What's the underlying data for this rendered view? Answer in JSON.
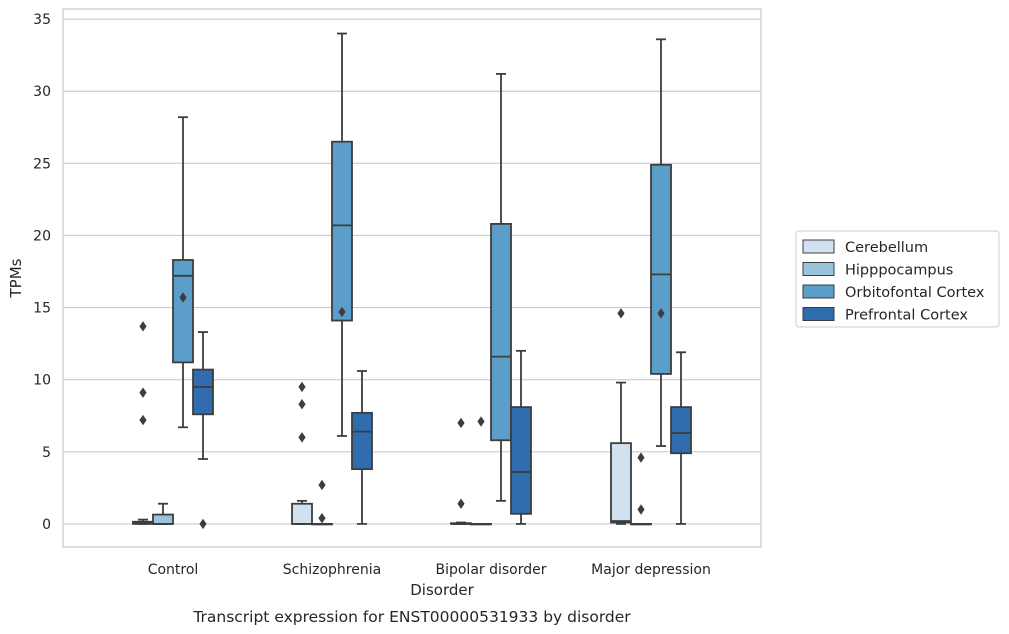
{
  "chart_data": {
    "type": "box",
    "xlabel": "Disorder",
    "ylabel": "TPMs",
    "caption": "Transcript expression for ENST00000531933 by disorder",
    "ylim": [
      -1.6,
      35.7
    ],
    "yticks": [
      0,
      5,
      10,
      15,
      20,
      25,
      30,
      35
    ],
    "grid": "horizontal",
    "legend_position": "right",
    "categories": [
      "Control",
      "Schizophrenia",
      "Bipolar disorder",
      "Major depression"
    ],
    "series": [
      {
        "name": "Cerebellum",
        "color": "#d1e1f0",
        "boxes": [
          {
            "whislo": 0,
            "q1": 0.0,
            "med": 0.1,
            "q3": 0.15,
            "whishi": 0.3,
            "fliers": [
              7.2,
              9.1,
              13.7
            ]
          },
          {
            "whislo": 0,
            "q1": 0.0,
            "med": 0.0,
            "q3": 1.4,
            "whishi": 1.6,
            "fliers": [
              6.0,
              8.3,
              9.5
            ]
          },
          {
            "whislo": 0,
            "q1": 0.0,
            "med": 0.0,
            "q3": 0.05,
            "whishi": 0.1,
            "fliers": [
              1.4,
              7.0
            ]
          },
          {
            "whislo": 0,
            "q1": 0.1,
            "med": 0.2,
            "q3": 5.6,
            "whishi": 9.8,
            "fliers": [
              14.6
            ]
          }
        ]
      },
      {
        "name": "Hipppocampus",
        "color": "#9ac3de",
        "boxes": [
          {
            "whislo": 0,
            "q1": 0.0,
            "med": 0.0,
            "q3": 0.65,
            "whishi": 1.4,
            "fliers": []
          },
          {
            "whislo": 0,
            "q1": 0.0,
            "med": 0.0,
            "q3": 0.0,
            "whishi": 0.0,
            "fliers": [
              0.4,
              2.7
            ]
          },
          {
            "whislo": 0,
            "q1": 0.0,
            "med": 0.0,
            "q3": 0.0,
            "whishi": 0.0,
            "fliers": [
              7.1
            ]
          },
          {
            "whislo": 0,
            "q1": 0.0,
            "med": 0.0,
            "q3": 0.0,
            "whishi": 0.0,
            "fliers": [
              1.0,
              4.6
            ]
          }
        ]
      },
      {
        "name": "Orbitofontal Cortex",
        "color": "#5b9ec9",
        "boxes": [
          {
            "whislo": 6.7,
            "q1": 11.2,
            "med": 17.2,
            "q3": 18.3,
            "whishi": 28.2,
            "fliers": [
              15.7
            ]
          },
          {
            "whislo": 6.1,
            "q1": 14.1,
            "med": 20.7,
            "q3": 26.5,
            "whishi": 34.0,
            "fliers": [
              14.7
            ]
          },
          {
            "whislo": 1.6,
            "q1": 5.8,
            "med": 11.6,
            "q3": 20.8,
            "whishi": 31.2,
            "fliers": []
          },
          {
            "whislo": 5.4,
            "q1": 10.4,
            "med": 17.3,
            "q3": 24.9,
            "whishi": 33.6,
            "fliers": [
              14.6
            ]
          }
        ]
      },
      {
        "name": "Prefrontal Cortex",
        "color": "#2f6daf",
        "boxes": [
          {
            "whislo": 4.5,
            "q1": 7.6,
            "med": 9.5,
            "q3": 10.7,
            "whishi": 13.3,
            "fliers": [
              0.0
            ]
          },
          {
            "whislo": 0,
            "q1": 3.8,
            "med": 6.4,
            "q3": 7.7,
            "whishi": 10.6,
            "fliers": []
          },
          {
            "whislo": 0,
            "q1": 0.7,
            "med": 3.6,
            "q3": 8.1,
            "whishi": 12.0,
            "fliers": []
          },
          {
            "whislo": 0,
            "q1": 4.9,
            "med": 6.3,
            "q3": 8.1,
            "whishi": 11.9,
            "fliers": []
          }
        ]
      }
    ]
  }
}
